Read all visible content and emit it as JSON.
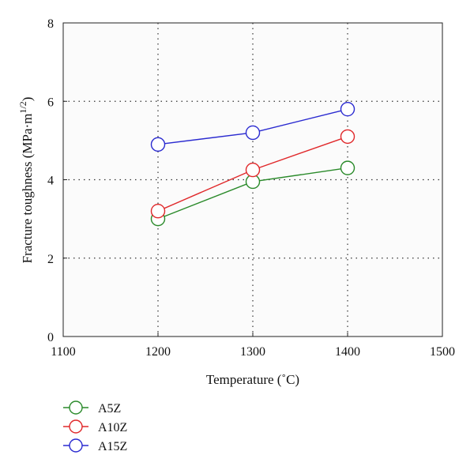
{
  "chart_data": {
    "type": "line",
    "xlabel": "Temperature (˚C)",
    "ylabel_main": "Fracture toughness (MPa·m",
    "ylabel_sup": "1/2",
    "ylabel_close": ")",
    "xlim": [
      1100,
      1500
    ],
    "ylim": [
      0,
      8
    ],
    "xticks": [
      1100,
      1200,
      1300,
      1400,
      1500
    ],
    "yticks": [
      0,
      2,
      4,
      6,
      8
    ],
    "grid": "dotted",
    "legend_placement": "bottom-left",
    "x": [
      1200,
      1300,
      1400
    ],
    "series": [
      {
        "name": "A5Z",
        "color": "#2a8a2a",
        "values": [
          3.0,
          3.95,
          4.3
        ]
      },
      {
        "name": "A10Z",
        "color": "#e0282a",
        "values": [
          3.2,
          4.25,
          5.1
        ]
      },
      {
        "name": "A15Z",
        "color": "#2a2ad0",
        "values": [
          4.9,
          5.2,
          5.8
        ]
      }
    ]
  }
}
